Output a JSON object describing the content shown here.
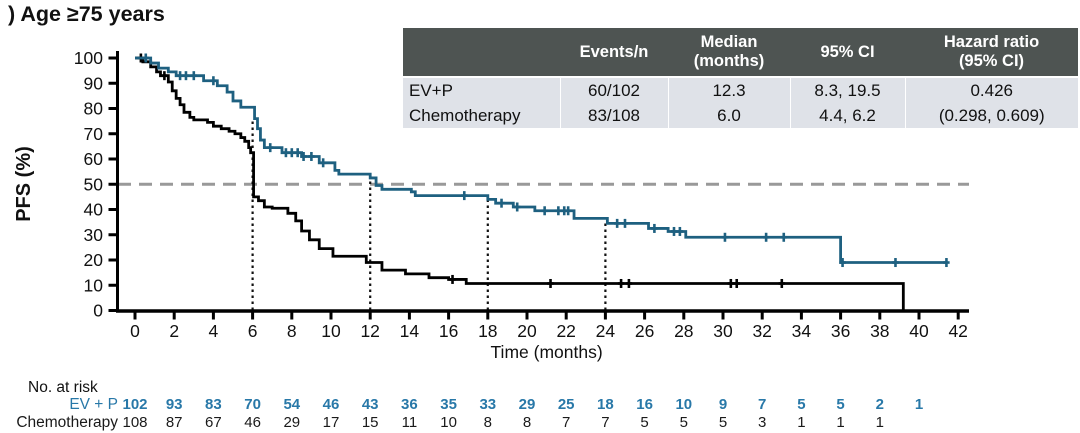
{
  "title": ") Age ≥75 years",
  "summary_table": {
    "headers": [
      "",
      "Events/n",
      "Median\n(months)",
      "95% CI",
      "Hazard ratio\n(95% CI)"
    ],
    "rows": [
      {
        "label": "EV+P",
        "events_n": "60/102",
        "median": "12.3",
        "ci": "8.3, 19.5",
        "hr": "0.426"
      },
      {
        "label": "Chemotherapy",
        "events_n": "83/108",
        "median": "6.0",
        "ci": "4.4, 6.2",
        "hr": "(0.298, 0.609)"
      }
    ]
  },
  "chart_data": {
    "type": "line",
    "subtype": "kaplan_meier_step",
    "xlabel": "Time (months)",
    "ylabel": "PFS (%)",
    "xlim": [
      0,
      42
    ],
    "ylim": [
      0,
      100
    ],
    "xticks": [
      0,
      2,
      4,
      6,
      8,
      10,
      12,
      14,
      16,
      18,
      20,
      22,
      24,
      26,
      28,
      30,
      32,
      34,
      36,
      38,
      40,
      42
    ],
    "yticks": [
      0,
      10,
      20,
      30,
      40,
      50,
      60,
      70,
      80,
      90,
      100
    ],
    "grid": false,
    "legend_position": "none",
    "reference_lines": {
      "horizontal_dashed_y": 50,
      "vertical_dotted_x": [
        6,
        12,
        18,
        24
      ]
    },
    "series": [
      {
        "name": "EV+P",
        "color": "#1e6080",
        "end_time": 41.4,
        "steps": [
          [
            0,
            100
          ],
          [
            0.8,
            98
          ],
          [
            1.2,
            96
          ],
          [
            1.7,
            94.5
          ],
          [
            2.1,
            93
          ],
          [
            3.5,
            91
          ],
          [
            4.2,
            89
          ],
          [
            4.7,
            86.5
          ],
          [
            5.0,
            83
          ],
          [
            5.4,
            80.5
          ],
          [
            6.1,
            76
          ],
          [
            6.25,
            72
          ],
          [
            6.4,
            67.5
          ],
          [
            6.6,
            64.5
          ],
          [
            7.5,
            62.5
          ],
          [
            8.5,
            61
          ],
          [
            9.4,
            58.5
          ],
          [
            10.2,
            55.5
          ],
          [
            10.4,
            54
          ],
          [
            12.0,
            52.5
          ],
          [
            12.3,
            49.5
          ],
          [
            12.6,
            48
          ],
          [
            14.1,
            47
          ],
          [
            14.3,
            45.5
          ],
          [
            18.0,
            44
          ],
          [
            18.4,
            42.5
          ],
          [
            19.3,
            41
          ],
          [
            20.4,
            39.5
          ],
          [
            22.4,
            36.5
          ],
          [
            24.1,
            34.5
          ],
          [
            26.2,
            32.5
          ],
          [
            27.2,
            31.3
          ],
          [
            28.1,
            29
          ],
          [
            36.0,
            19
          ]
        ],
        "censor_times": [
          0.55,
          2.3,
          2.6,
          3.0,
          4.0,
          6.9,
          7.7,
          8.0,
          8.3,
          8.6,
          9.0,
          9.6,
          16.8,
          18.7,
          19.5,
          20.9,
          21.6,
          21.9,
          22.1,
          24.6,
          25.0,
          26.5,
          27.5,
          27.8,
          30.1,
          32.2,
          33.1,
          36.1,
          38.8,
          41.4
        ]
      },
      {
        "name": "Chemotherapy",
        "color": "#000000",
        "end_time": 39.2,
        "steps": [
          [
            0,
            100
          ],
          [
            0.4,
            98.5
          ],
          [
            0.8,
            96.5
          ],
          [
            1.1,
            94.5
          ],
          [
            1.3,
            93
          ],
          [
            1.7,
            90.5
          ],
          [
            1.9,
            87
          ],
          [
            2.1,
            84
          ],
          [
            2.3,
            81.5
          ],
          [
            2.5,
            78.5
          ],
          [
            2.8,
            76.5
          ],
          [
            3.0,
            75.5
          ],
          [
            3.7,
            74.5
          ],
          [
            4.0,
            73
          ],
          [
            4.4,
            72
          ],
          [
            4.8,
            71
          ],
          [
            5.1,
            70
          ],
          [
            5.4,
            68.5
          ],
          [
            5.6,
            67
          ],
          [
            5.8,
            64.5
          ],
          [
            5.9,
            62.5
          ],
          [
            6.05,
            45
          ],
          [
            6.3,
            43.5
          ],
          [
            6.6,
            41
          ],
          [
            7.0,
            40.5
          ],
          [
            7.8,
            38.5
          ],
          [
            8.2,
            35.5
          ],
          [
            8.5,
            31.5
          ],
          [
            8.9,
            28
          ],
          [
            9.4,
            24.5
          ],
          [
            10.1,
            21.5
          ],
          [
            11.8,
            19
          ],
          [
            12.6,
            16
          ],
          [
            13.8,
            14.5
          ],
          [
            15.0,
            13
          ],
          [
            16.0,
            12.3
          ],
          [
            16.9,
            10.7
          ],
          [
            39.2,
            0
          ]
        ],
        "censor_times": [
          0.3,
          1.5,
          16.2,
          21.2,
          24.8,
          25.2,
          30.4,
          30.7,
          33.0
        ]
      }
    ]
  },
  "risk_table": {
    "heading": "No. at risk",
    "time_start": 0,
    "time_interval": 2,
    "rows": [
      {
        "label": "EV + P",
        "color": "#2878a8",
        "bold": true,
        "values": [
          102,
          93,
          83,
          70,
          54,
          46,
          43,
          36,
          35,
          33,
          29,
          25,
          18,
          16,
          10,
          9,
          7,
          5,
          5,
          2,
          1
        ]
      },
      {
        "label": "Chemotherapy",
        "color": "#1a1a1a",
        "bold": false,
        "values": [
          108,
          87,
          67,
          46,
          29,
          17,
          15,
          11,
          10,
          8,
          8,
          7,
          7,
          5,
          5,
          5,
          3,
          1,
          1,
          1
        ]
      }
    ]
  },
  "colors": {
    "ev_p_curve": "#1e6080",
    "ev_p_text": "#2878a8",
    "chemotherapy_curve": "#000000",
    "table_header_bg": "#4e5452",
    "table_row_bg": "#dfe2e8",
    "dashed_median_line": "#999999",
    "dotted_line": "#111111"
  }
}
